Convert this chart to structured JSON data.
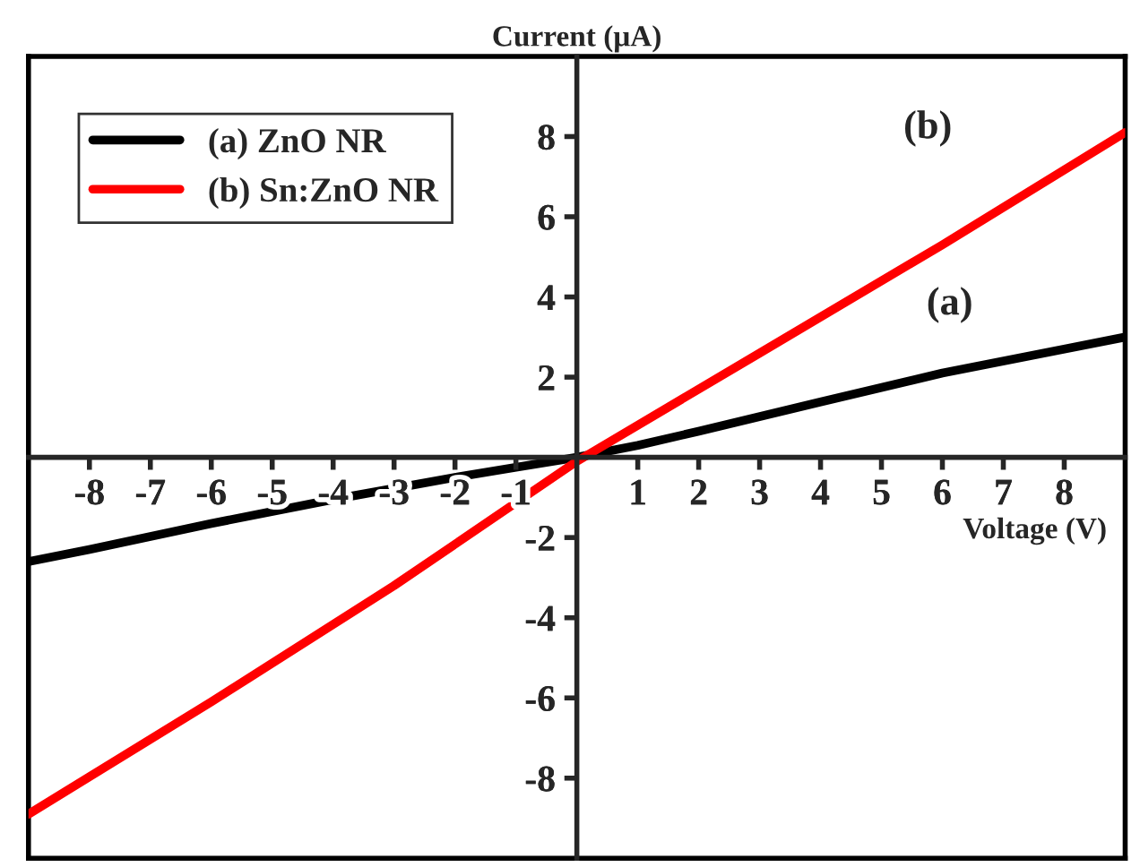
{
  "chart_data": {
    "type": "line",
    "xlabel": "Voltage (V)",
    "ylabel": "Current (μA)",
    "xlim": [
      -9,
      9
    ],
    "ylim": [
      -10,
      10
    ],
    "xticks": [
      -8,
      -7,
      -6,
      -5,
      -4,
      -3,
      -2,
      -1,
      1,
      2,
      3,
      4,
      5,
      6,
      7,
      8
    ],
    "yticks": [
      -8,
      -6,
      -4,
      -2,
      2,
      4,
      6,
      8
    ],
    "legend": "top left",
    "grid": false,
    "marker": "none",
    "line_style": "solid",
    "series": [
      {
        "name": "(a) ZnO NR",
        "color": "#000000",
        "x": [
          -9,
          -8,
          -6,
          -4,
          -2,
          -1,
          0,
          1,
          2,
          4,
          6,
          8,
          9
        ],
        "values": [
          -2.6,
          -2.3,
          -1.65,
          -1.05,
          -0.5,
          -0.25,
          0,
          0.3,
          0.65,
          1.38,
          2.1,
          2.7,
          3.0
        ]
      },
      {
        "name": "(b) Sn:ZnO NR",
        "color": "#ff0000",
        "x": [
          -9,
          -6,
          -3,
          0,
          3,
          6,
          9
        ],
        "values": [
          -8.9,
          -6.1,
          -3.2,
          -0.1,
          2.6,
          5.3,
          8.1
        ]
      }
    ],
    "annotations": [
      "(b)",
      "(a)"
    ]
  }
}
